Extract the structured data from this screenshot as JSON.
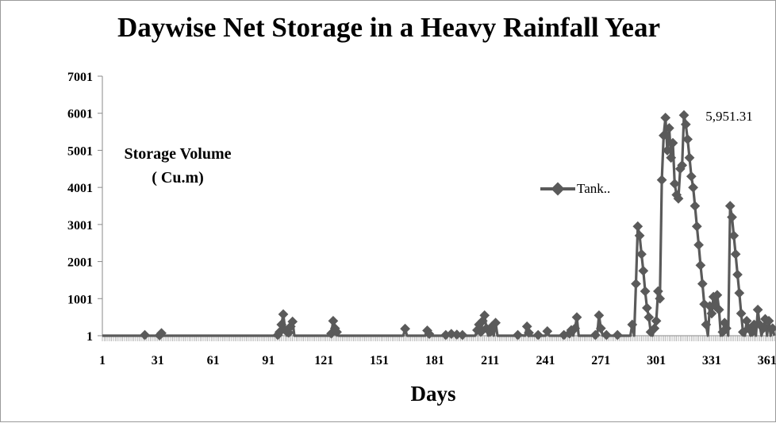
{
  "chart_data": {
    "type": "line",
    "title": "Daywise Net Storage in a Heavy Rainfall Year",
    "xlabel": "Days",
    "ylabel": [
      "Storage Volume",
      "( Cu.m)"
    ],
    "xlim": [
      1,
      365
    ],
    "ylim": [
      1,
      7001
    ],
    "x_ticks": [
      "1",
      "31",
      "61",
      "91",
      "121",
      "151",
      "181",
      "211",
      "241",
      "271",
      "301",
      "331",
      "361"
    ],
    "y_ticks": [
      "1",
      "1001",
      "2001",
      "3001",
      "4001",
      "5001",
      "6001",
      "7001"
    ],
    "legend_position": "right-center",
    "grid": false,
    "series": [
      {
        "name": "Tank..",
        "color": "#5a5a5a",
        "marker": "diamond",
        "data_label": {
          "x": 320,
          "y": 5951.31,
          "text": "5,951.31"
        },
        "points": [
          [
            1,
            1
          ],
          [
            23,
            1
          ],
          [
            24,
            20
          ],
          [
            25,
            1
          ],
          [
            31,
            1
          ],
          [
            32,
            10
          ],
          [
            33,
            70
          ],
          [
            34,
            1
          ],
          [
            95,
            1
          ],
          [
            96,
            20
          ],
          [
            97,
            100
          ],
          [
            98,
            300
          ],
          [
            99,
            580
          ],
          [
            100,
            150
          ],
          [
            101,
            1
          ],
          [
            102,
            80
          ],
          [
            103,
            250
          ],
          [
            104,
            380
          ],
          [
            105,
            1
          ],
          [
            124,
            1
          ],
          [
            125,
            60
          ],
          [
            126,
            400
          ],
          [
            127,
            200
          ],
          [
            128,
            100
          ],
          [
            129,
            1
          ],
          [
            164,
            1
          ],
          [
            165,
            190
          ],
          [
            166,
            1
          ],
          [
            176,
            1
          ],
          [
            177,
            140
          ],
          [
            178,
            50
          ],
          [
            179,
            1
          ],
          [
            186,
            1
          ],
          [
            187,
            20
          ],
          [
            190,
            50
          ],
          [
            191,
            1
          ],
          [
            193,
            30
          ],
          [
            194,
            1
          ],
          [
            196,
            20
          ],
          [
            197,
            1
          ],
          [
            203,
            1
          ],
          [
            204,
            150
          ],
          [
            205,
            300
          ],
          [
            206,
            100
          ],
          [
            207,
            400
          ],
          [
            208,
            550
          ],
          [
            209,
            200
          ],
          [
            210,
            1
          ],
          [
            211,
            100
          ],
          [
            212,
            250
          ],
          [
            213,
            1
          ],
          [
            214,
            350
          ],
          [
            215,
            1
          ],
          [
            225,
            1
          ],
          [
            226,
            20
          ],
          [
            230,
            1
          ],
          [
            231,
            250
          ],
          [
            232,
            80
          ],
          [
            233,
            1
          ],
          [
            236,
            1
          ],
          [
            237,
            20
          ],
          [
            238,
            1
          ],
          [
            241,
            1
          ],
          [
            242,
            120
          ],
          [
            243,
            1
          ],
          [
            250,
            1
          ],
          [
            251,
            20
          ],
          [
            253,
            1
          ],
          [
            254,
            60
          ],
          [
            255,
            150
          ],
          [
            256,
            1
          ],
          [
            257,
            200
          ],
          [
            258,
            500
          ],
          [
            259,
            1
          ],
          [
            267,
            1
          ],
          [
            268,
            20
          ],
          [
            269,
            1
          ],
          [
            270,
            550
          ],
          [
            271,
            200
          ],
          [
            272,
            1
          ],
          [
            273,
            1
          ],
          [
            274,
            20
          ],
          [
            276,
            1
          ],
          [
            279,
            1
          ],
          [
            280,
            20
          ],
          [
            281,
            1
          ],
          [
            287,
            1
          ],
          [
            288,
            300
          ],
          [
            289,
            1
          ],
          [
            290,
            1400
          ],
          [
            291,
            2950
          ],
          [
            292,
            2700
          ],
          [
            293,
            2200
          ],
          [
            294,
            1750
          ],
          [
            295,
            1200
          ],
          [
            296,
            750
          ],
          [
            297,
            500
          ],
          [
            298,
            100
          ],
          [
            299,
            1
          ],
          [
            300,
            200
          ],
          [
            301,
            400
          ],
          [
            302,
            1200
          ],
          [
            303,
            1000
          ],
          [
            304,
            4200
          ],
          [
            305,
            5400
          ],
          [
            306,
            5880
          ],
          [
            307,
            5000
          ],
          [
            308,
            5600
          ],
          [
            309,
            4800
          ],
          [
            310,
            5200
          ],
          [
            311,
            4100
          ],
          [
            312,
            3800
          ],
          [
            313,
            3700
          ],
          [
            314,
            4500
          ],
          [
            315,
            4600
          ],
          [
            316,
            5951
          ],
          [
            317,
            5700
          ],
          [
            318,
            5300
          ],
          [
            319,
            4800
          ],
          [
            320,
            4300
          ],
          [
            321,
            4000
          ],
          [
            322,
            3500
          ],
          [
            323,
            2950
          ],
          [
            324,
            2450
          ],
          [
            325,
            1900
          ],
          [
            326,
            1400
          ],
          [
            327,
            850
          ],
          [
            328,
            300
          ],
          [
            329,
            1
          ],
          [
            330,
            800
          ],
          [
            331,
            600
          ],
          [
            332,
            1050
          ],
          [
            333,
            800
          ],
          [
            334,
            1100
          ],
          [
            335,
            700
          ],
          [
            336,
            1
          ],
          [
            337,
            100
          ],
          [
            338,
            350
          ],
          [
            339,
            200
          ],
          [
            340,
            1
          ],
          [
            341,
            3500
          ],
          [
            342,
            3200
          ],
          [
            343,
            2700
          ],
          [
            344,
            2200
          ],
          [
            345,
            1650
          ],
          [
            346,
            1150
          ],
          [
            347,
            600
          ],
          [
            348,
            100
          ],
          [
            349,
            1
          ],
          [
            350,
            400
          ],
          [
            351,
            200
          ],
          [
            352,
            1
          ],
          [
            353,
            100
          ],
          [
            354,
            300
          ],
          [
            355,
            1
          ],
          [
            356,
            700
          ],
          [
            357,
            300
          ],
          [
            358,
            1
          ],
          [
            359,
            200
          ],
          [
            360,
            450
          ],
          [
            361,
            1
          ],
          [
            362,
            400
          ],
          [
            363,
            1
          ],
          [
            364,
            200
          ],
          [
            365,
            1
          ]
        ]
      }
    ]
  }
}
